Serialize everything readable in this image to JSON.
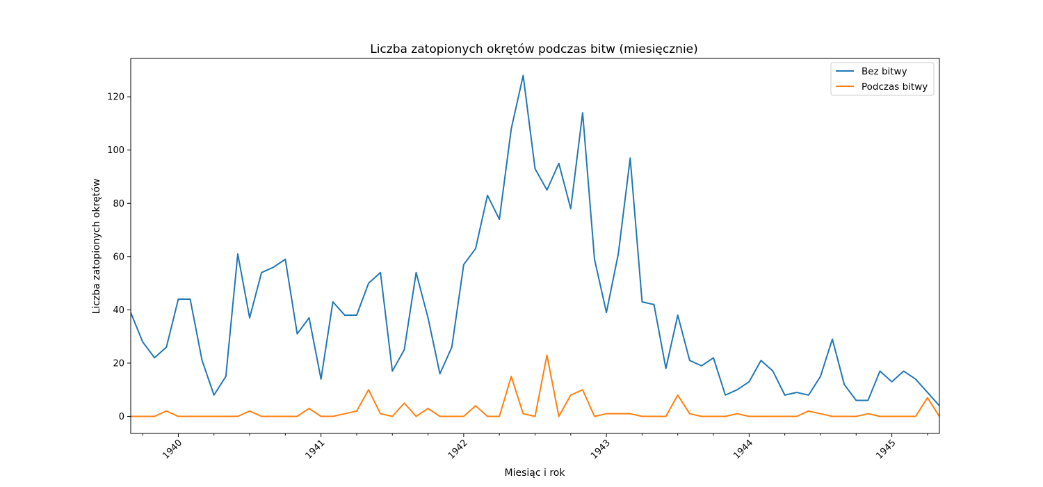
{
  "chart_data": {
    "type": "line",
    "title": "Liczba zatopionych okrętów podczas bitw (miesięcznie)",
    "xlabel": "Miesiąc i rok",
    "ylabel": "Liczba zatopionych okrętów",
    "ylim": [
      -6.4,
      134.4
    ],
    "xlim": [
      "1939-09",
      "1945-05"
    ],
    "yticks": [
      0,
      20,
      40,
      60,
      80,
      100,
      120
    ],
    "xtick_labels": [
      "1940",
      "1941",
      "1942",
      "1943",
      "1944",
      "1945"
    ],
    "grid": false,
    "legend_position": "top-right",
    "x": [
      "1939-09",
      "1939-10",
      "1939-11",
      "1939-12",
      "1940-01",
      "1940-02",
      "1940-03",
      "1940-04",
      "1940-05",
      "1940-06",
      "1940-07",
      "1940-08",
      "1940-09",
      "1940-10",
      "1940-11",
      "1940-12",
      "1941-01",
      "1941-02",
      "1941-03",
      "1941-04",
      "1941-05",
      "1941-06",
      "1941-07",
      "1941-08",
      "1941-09",
      "1941-10",
      "1941-11",
      "1941-12",
      "1942-01",
      "1942-02",
      "1942-03",
      "1942-04",
      "1942-05",
      "1942-06",
      "1942-07",
      "1942-08",
      "1942-09",
      "1942-10",
      "1942-11",
      "1942-12",
      "1943-01",
      "1943-02",
      "1943-03",
      "1943-04",
      "1943-05",
      "1943-06",
      "1943-07",
      "1943-08",
      "1943-09",
      "1943-10",
      "1943-11",
      "1943-12",
      "1944-01",
      "1944-02",
      "1944-03",
      "1944-04",
      "1944-05",
      "1944-06",
      "1944-07",
      "1944-08",
      "1944-09",
      "1944-10",
      "1944-11",
      "1944-12",
      "1945-01",
      "1945-02",
      "1945-03",
      "1945-04",
      "1945-05"
    ],
    "series": [
      {
        "name": "Bez bitwy",
        "color": "#1f77b4",
        "values": [
          39,
          28,
          22,
          26,
          44,
          44,
          21,
          8,
          15,
          61,
          37,
          54,
          56,
          59,
          31,
          37,
          14,
          43,
          38,
          38,
          50,
          54,
          17,
          25,
          54,
          37,
          16,
          26,
          57,
          63,
          83,
          74,
          108,
          128,
          93,
          85,
          95,
          78,
          114,
          59,
          39,
          61,
          97,
          43,
          42,
          18,
          38,
          21,
          19,
          22,
          8,
          10,
          13,
          21,
          17,
          8,
          9,
          8,
          15,
          29,
          12,
          6,
          6,
          17,
          13,
          17,
          14,
          9,
          4
        ]
      },
      {
        "name": "Podczas bitwy",
        "color": "#ff7f0e",
        "values": [
          0,
          0,
          0,
          2,
          0,
          0,
          0,
          0,
          0,
          0,
          2,
          0,
          0,
          0,
          0,
          3,
          0,
          0,
          1,
          2,
          10,
          1,
          0,
          5,
          0,
          3,
          0,
          0,
          0,
          4,
          0,
          0,
          15,
          1,
          0,
          23,
          0,
          8,
          10,
          0,
          1,
          1,
          1,
          0,
          0,
          0,
          8,
          1,
          0,
          0,
          0,
          1,
          0,
          0,
          0,
          0,
          0,
          2,
          1,
          0,
          0,
          0,
          1,
          0,
          0,
          0,
          0,
          7,
          0
        ]
      }
    ]
  }
}
